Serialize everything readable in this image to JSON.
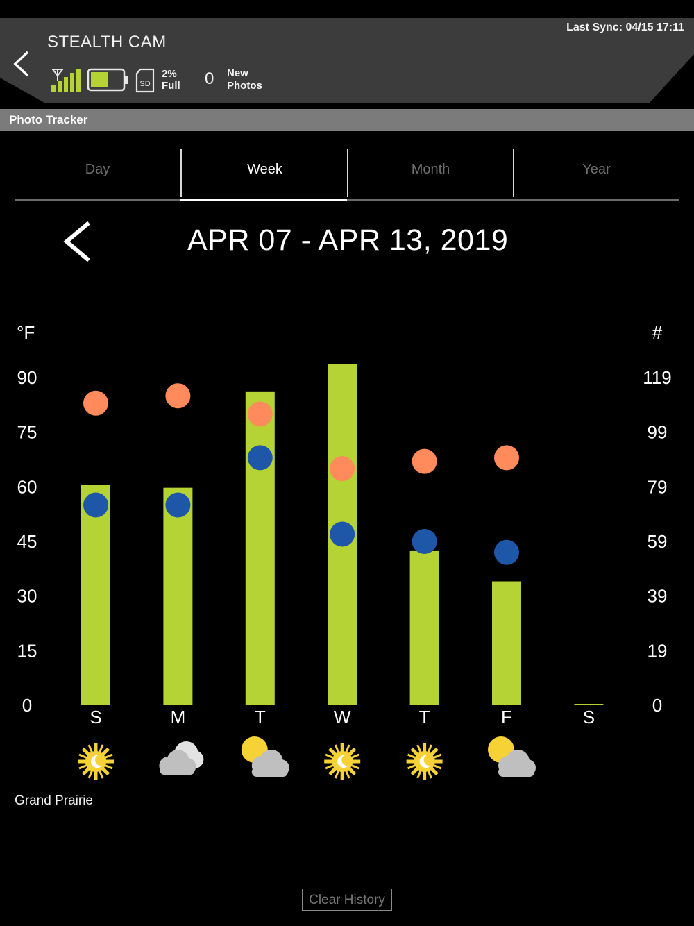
{
  "header": {
    "device_name": "STEALTH CAM",
    "last_sync": "Last Sync: 04/15 17:11",
    "sd_percent": "2%",
    "sd_label": "Full",
    "new_photos_count": "0",
    "new_photos_label_1": "New",
    "new_photos_label_2": "Photos",
    "signal_bars": 5,
    "battery_level": 0.55,
    "sd_icon_text": "SD"
  },
  "section": {
    "title": "Photo Tracker"
  },
  "tabs": [
    {
      "label": "Day",
      "active": false
    },
    {
      "label": "Week",
      "active": true
    },
    {
      "label": "Month",
      "active": false
    },
    {
      "label": "Year",
      "active": false
    }
  ],
  "range": {
    "title": "APR 07 - APR 13, 2019"
  },
  "colors": {
    "bar": "#b5d334",
    "high_temp": "#ff8a5b",
    "low_temp": "#1e57a7",
    "sun": "#f6d237",
    "cloud": "#bfbfbf"
  },
  "chart_data": {
    "type": "bar",
    "left_axis_title": "°F",
    "right_axis_title": "#",
    "left_ticks": [
      "90",
      "75",
      "60",
      "45",
      "30",
      "15",
      "0"
    ],
    "right_ticks": [
      "119",
      "99",
      "79",
      "59",
      "39",
      "19",
      "0"
    ],
    "categories": [
      "S",
      "M",
      "T",
      "W",
      "T",
      "F",
      "S"
    ],
    "photos": [
      80,
      79,
      114,
      124,
      56,
      45,
      0
    ],
    "high_temp_f": [
      83,
      85,
      80,
      65,
      67,
      68,
      null
    ],
    "low_temp_f": [
      55,
      55,
      68,
      47,
      45,
      42,
      null
    ],
    "weather_icons": [
      "sun-icon",
      "cloud-icon",
      "partly-cloudy-icon",
      "sun-icon",
      "sun-icon",
      "partly-cloudy-icon",
      ""
    ],
    "left_range": [
      0,
      90
    ],
    "right_range": [
      0,
      119
    ]
  },
  "footer": {
    "location": "Grand Prairie",
    "clear_button": "Clear History"
  }
}
